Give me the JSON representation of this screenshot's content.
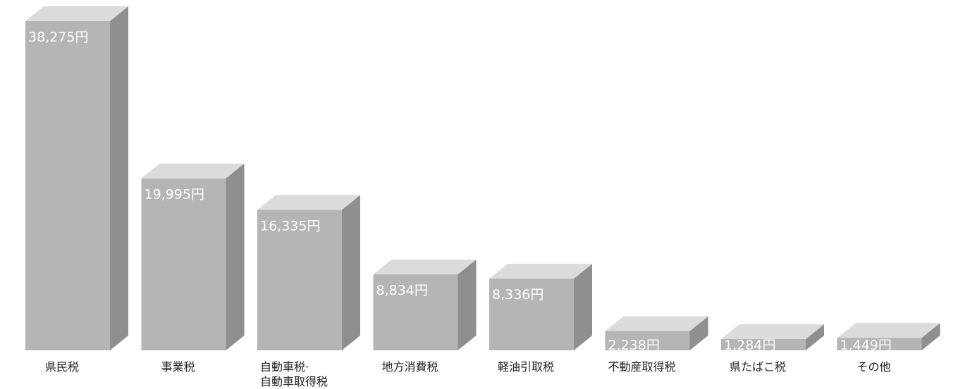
{
  "chart_data": {
    "type": "bar",
    "categories": [
      [
        "県民税"
      ],
      [
        "事業税"
      ],
      [
        "自動車税·",
        "自動車取得税"
      ],
      [
        "地方消費税"
      ],
      [
        "軽油引取税"
      ],
      [
        "不動産取得税"
      ],
      [
        "県たばこ税"
      ],
      [
        "その他"
      ]
    ],
    "values": [
      38275,
      19995,
      16335,
      8834,
      8336,
      2238,
      1284,
      1449
    ],
    "value_labels": [
      "38,275円",
      "19,995円",
      "16,335円",
      "8,834円",
      "8,336円",
      "2,238円",
      "1,284円",
      "1,449円"
    ],
    "title": "",
    "xlabel": "",
    "ylabel": "",
    "grid": false,
    "legend": "none",
    "colors": {
      "front": "#b5b5b5",
      "top": "#dcdcdc",
      "side": "#8f8f8f",
      "value_text": "#ffffff",
      "label_text": "#222222"
    }
  }
}
